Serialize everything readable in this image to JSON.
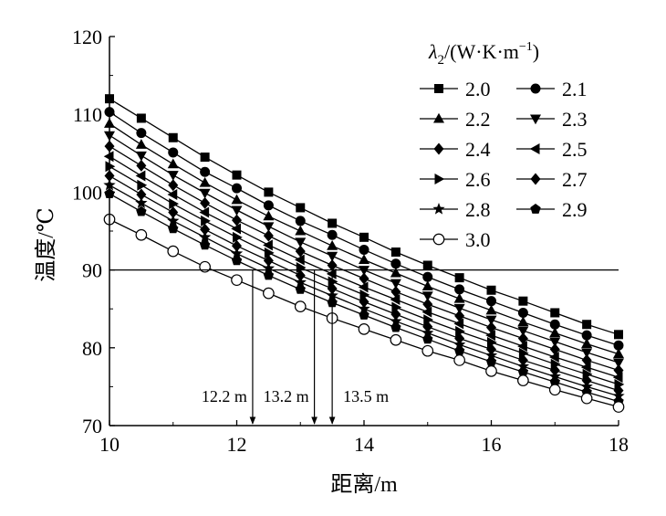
{
  "chart_data": {
    "type": "line",
    "xlabel": "距离/m",
    "ylabel": "温度/℃",
    "xlim": [
      10,
      18
    ],
    "ylim": [
      70,
      120
    ],
    "xticks": [
      "10",
      "12",
      "14",
      "16",
      "18"
    ],
    "yticks": [
      "70",
      "80",
      "90",
      "100",
      "110",
      "120"
    ],
    "grid": false,
    "legend": {
      "title_base": "λ",
      "title_sub": "2",
      "title_rest": "/(W·K·m",
      "title_sup": "−1",
      "title_end": ")",
      "placement": "top-right",
      "columns": 2
    },
    "x": [
      10,
      10.5,
      11,
      11.5,
      12,
      12.5,
      13,
      13.5,
      14,
      14.5,
      15,
      15.5,
      16,
      16.5,
      17,
      17.5,
      18
    ],
    "series": [
      {
        "name": "2.0",
        "marker": "square",
        "values": [
          112.0,
          109.5,
          107.0,
          104.5,
          102.2,
          100.0,
          98.0,
          96.0,
          94.2,
          92.3,
          90.6,
          89.0,
          87.4,
          86.0,
          84.5,
          83.0,
          81.7
        ]
      },
      {
        "name": "2.1",
        "marker": "circle-filled",
        "values": [
          110.3,
          107.6,
          105.1,
          102.6,
          100.5,
          98.3,
          96.3,
          94.5,
          92.6,
          90.8,
          89.1,
          87.5,
          86.0,
          84.5,
          83.0,
          81.6,
          80.3
        ]
      },
      {
        "name": "2.2",
        "marker": "triangle-up",
        "values": [
          108.8,
          106.1,
          103.6,
          101.2,
          99.0,
          96.9,
          95.0,
          93.1,
          91.3,
          89.6,
          87.9,
          86.3,
          84.8,
          83.3,
          81.9,
          80.5,
          79.2
        ]
      },
      {
        "name": "2.3",
        "marker": "triangle-down",
        "values": [
          107.3,
          104.7,
          102.2,
          99.9,
          97.7,
          95.6,
          93.6,
          91.8,
          90.0,
          88.3,
          86.7,
          85.1,
          83.6,
          82.2,
          80.8,
          79.4,
          78.1
        ]
      },
      {
        "name": "2.4",
        "marker": "diamond",
        "values": [
          105.9,
          103.4,
          100.9,
          98.6,
          96.4,
          94.4,
          92.4,
          90.6,
          88.9,
          87.2,
          85.6,
          84.1,
          82.6,
          81.2,
          79.8,
          78.4,
          77.1
        ]
      },
      {
        "name": "2.5",
        "marker": "triangle-left",
        "values": [
          104.6,
          102.1,
          99.7,
          97.4,
          95.3,
          93.2,
          91.3,
          89.5,
          87.8,
          86.2,
          84.6,
          83.1,
          81.6,
          80.2,
          78.8,
          77.5,
          76.2
        ]
      },
      {
        "name": "2.6",
        "marker": "triangle-right",
        "values": [
          103.3,
          100.9,
          98.5,
          96.3,
          94.2,
          92.2,
          90.3,
          88.5,
          86.8,
          85.2,
          83.6,
          82.1,
          80.7,
          79.3,
          77.9,
          76.6,
          75.3
        ]
      },
      {
        "name": "2.7",
        "marker": "diamond",
        "values": [
          102.1,
          99.7,
          97.4,
          95.2,
          93.1,
          91.2,
          89.3,
          87.6,
          85.9,
          84.3,
          82.7,
          81.2,
          79.8,
          78.4,
          77.1,
          75.8,
          74.5
        ]
      },
      {
        "name": "2.8",
        "marker": "star",
        "values": [
          100.9,
          98.6,
          96.3,
          94.2,
          92.1,
          90.2,
          88.4,
          86.7,
          85.0,
          83.4,
          81.9,
          80.4,
          79.0,
          77.6,
          76.3,
          75.0,
          73.8
        ]
      },
      {
        "name": "2.9",
        "marker": "pentagon",
        "values": [
          99.8,
          97.5,
          95.3,
          93.2,
          91.2,
          89.3,
          87.5,
          85.8,
          84.2,
          82.6,
          81.1,
          79.6,
          78.2,
          76.9,
          75.6,
          74.3,
          73.1
        ]
      },
      {
        "name": "3.0",
        "marker": "circle-open",
        "values": [
          96.5,
          94.5,
          92.4,
          90.4,
          88.7,
          87.0,
          85.3,
          83.8,
          82.4,
          81.0,
          79.6,
          78.4,
          77.0,
          75.8,
          74.6,
          73.5,
          72.4
        ]
      }
    ],
    "reference_line": {
      "y": 90,
      "x_from": 10,
      "x_to": 18
    },
    "annotations": [
      {
        "text": "12.2 m",
        "x": 12.25,
        "label_side": "left"
      },
      {
        "text": "13.2 m",
        "x": 13.22,
        "label_side": "left"
      },
      {
        "text": "13.5 m",
        "x": 13.5,
        "label_side": "right"
      }
    ]
  }
}
